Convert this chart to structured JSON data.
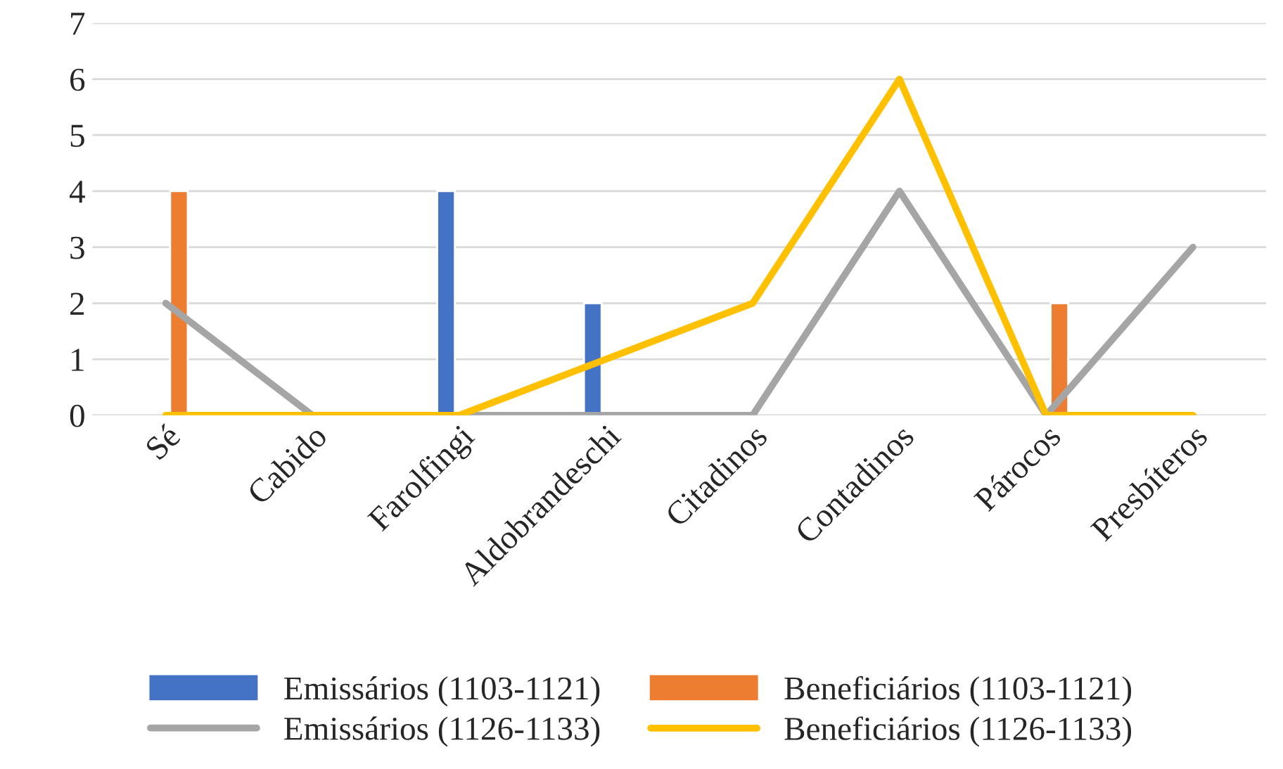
{
  "chart_data": {
    "type": "bar",
    "categories": [
      "Sé",
      "Cabido",
      "Farolfingi",
      "Aldobrandeschi",
      "Citadinos",
      "Contadinos",
      "Párocos",
      "Presbíteros"
    ],
    "series": [
      {
        "name": "Emissários (1103-1121)",
        "color": "#4472c4",
        "values": [
          null,
          null,
          4,
          2,
          null,
          null,
          null,
          null
        ]
      },
      {
        "name": "Beneficiários (1103-1121)",
        "color": "#ed7d31",
        "values": [
          4,
          null,
          null,
          null,
          null,
          null,
          2,
          null
        ]
      },
      {
        "name": "Emissários (1126-1133)",
        "type": "line",
        "color": "#a5a5a5",
        "values": [
          2,
          0,
          0,
          0,
          0,
          4,
          0,
          3
        ]
      },
      {
        "name": "Beneficiários (1126-1133)",
        "type": "line",
        "color": "#ffc000",
        "values": [
          0,
          0,
          0,
          1,
          2,
          6,
          0,
          0
        ]
      }
    ],
    "ylim": [
      0,
      7
    ],
    "yticks": [
      0,
      1,
      2,
      3,
      4,
      5,
      6,
      7
    ],
    "grid": "y",
    "legend": "bottom",
    "marker": "none",
    "line_style": "solid"
  }
}
